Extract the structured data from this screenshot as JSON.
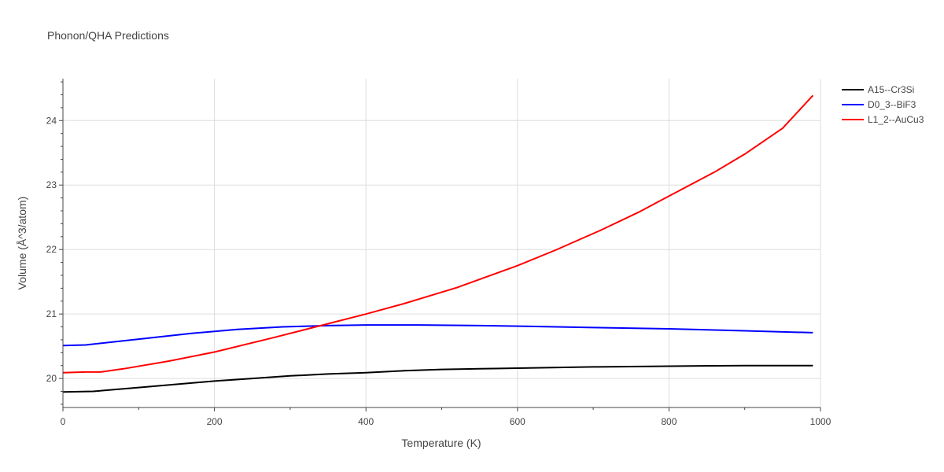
{
  "chart_data": {
    "type": "line",
    "title": "Phonon/QHA Predictions",
    "xlabel": "Temperature (K)",
    "ylabel": "Volume (Å^3/atom)",
    "xlim": [
      0,
      1000
    ],
    "ylim": [
      19.55,
      24.65
    ],
    "xticks": [
      0,
      200,
      400,
      600,
      800,
      1000
    ],
    "yticks": [
      20,
      21,
      22,
      23,
      24
    ],
    "grid": true,
    "legend_position": "top-right",
    "series": [
      {
        "name": "A15--Cr3Si",
        "color": "#000000",
        "x": [
          0,
          40,
          100,
          150,
          200,
          250,
          300,
          350,
          400,
          450,
          500,
          550,
          600,
          700,
          800,
          900,
          990
        ],
        "y": [
          19.79,
          19.8,
          19.86,
          19.91,
          19.96,
          20.0,
          20.04,
          20.07,
          20.09,
          20.12,
          20.14,
          20.15,
          20.16,
          20.18,
          20.19,
          20.2,
          20.2
        ]
      },
      {
        "name": "D0_3--BiF3",
        "color": "#0000ff",
        "x": [
          0,
          30,
          100,
          170,
          230,
          290,
          350,
          400,
          470,
          550,
          610,
          700,
          800,
          900,
          990
        ],
        "y": [
          20.51,
          20.52,
          20.61,
          20.7,
          20.76,
          20.8,
          20.82,
          20.83,
          20.83,
          20.82,
          20.81,
          20.79,
          20.77,
          20.74,
          20.71
        ]
      },
      {
        "name": "L1_2--AuCu3",
        "color": "#ff0000",
        "x": [
          0,
          30,
          50,
          80,
          140,
          200,
          280,
          350,
          400,
          450,
          520,
          600,
          650,
          710,
          760,
          800,
          860,
          900,
          950,
          990
        ],
        "y": [
          20.09,
          20.1,
          20.1,
          20.15,
          20.27,
          20.41,
          20.64,
          20.85,
          21.0,
          21.16,
          21.41,
          21.75,
          21.99,
          22.3,
          22.58,
          22.83,
          23.2,
          23.48,
          23.88,
          24.39
        ]
      }
    ]
  }
}
